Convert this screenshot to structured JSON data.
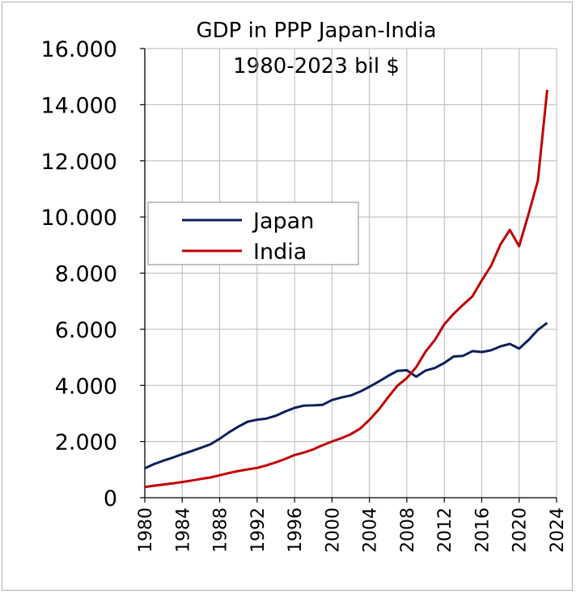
{
  "chart_data": {
    "type": "line",
    "title": [
      "GDP in PPP Japan-India",
      "1980-2023 bil  $"
    ],
    "xlim": [
      1980,
      2024
    ],
    "ylim": [
      0,
      16000
    ],
    "x_ticks": [
      1980,
      1984,
      1988,
      1992,
      1996,
      2000,
      2004,
      2008,
      2012,
      2016,
      2020,
      2024
    ],
    "x_tick_labels": [
      "1980",
      "1984",
      "1988",
      "1992",
      "1996",
      "2000",
      "2004",
      "2008",
      "2012",
      "2016",
      "2020",
      "2024"
    ],
    "y_ticks": [
      0,
      2000,
      4000,
      6000,
      8000,
      10000,
      12000,
      14000,
      16000
    ],
    "y_tick_labels": [
      "0",
      "2.000",
      "4.000",
      "6.000",
      "8.000",
      "10.000",
      "12.000",
      "14.000",
      "16.000"
    ],
    "grid": true,
    "legend_position": "left-middle",
    "x": [
      1980,
      1981,
      1982,
      1983,
      1984,
      1985,
      1986,
      1987,
      1988,
      1989,
      1990,
      1991,
      1992,
      1993,
      1994,
      1995,
      1996,
      1997,
      1998,
      1999,
      2000,
      2001,
      2002,
      2003,
      2004,
      2005,
      2006,
      2007,
      2008,
      2009,
      2010,
      2011,
      2012,
      2013,
      2014,
      2015,
      2016,
      2017,
      2018,
      2019,
      2020,
      2021,
      2022,
      2023
    ],
    "series": [
      {
        "name": "Japan",
        "color": "#0d1f5c",
        "values": [
          1050,
          1200,
          1320,
          1430,
          1550,
          1660,
          1780,
          1900,
          2100,
          2330,
          2530,
          2710,
          2780,
          2820,
          2920,
          3070,
          3200,
          3280,
          3290,
          3310,
          3480,
          3570,
          3640,
          3780,
          3950,
          4140,
          4340,
          4520,
          4540,
          4310,
          4530,
          4620,
          4800,
          5030,
          5050,
          5220,
          5190,
          5250,
          5390,
          5480,
          5310,
          5620,
          5980,
          6230
        ]
      },
      {
        "name": "India",
        "color": "#c00000",
        "values": [
          380,
          430,
          470,
          510,
          560,
          610,
          670,
          720,
          800,
          880,
          950,
          1010,
          1060,
          1150,
          1260,
          1380,
          1520,
          1610,
          1720,
          1870,
          2000,
          2120,
          2260,
          2460,
          2770,
          3140,
          3580,
          3990,
          4260,
          4650,
          5200,
          5620,
          6180,
          6550,
          6870,
          7170,
          7740,
          8260,
          9020,
          9540,
          8960,
          10100,
          11300,
          14530
        ]
      }
    ]
  }
}
